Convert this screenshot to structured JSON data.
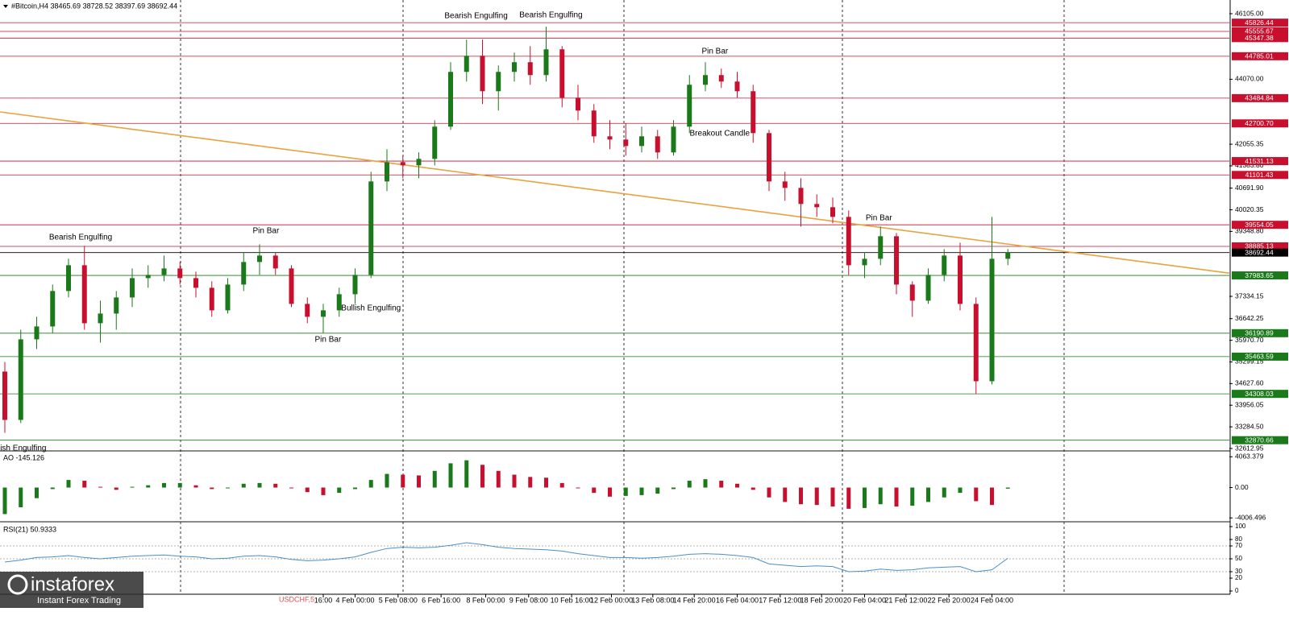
{
  "header": {
    "watermark": "USDCHF,5",
    "logo": "instaforex",
    "logo_sub": "Instant Forex Trading"
  },
  "chart_data": [
    {
      "type": "candlestick",
      "title": "#Bitcoin,H4  38465.69 38728.52 38397.69 38692.44",
      "up_color": "#1a7a1a",
      "down_color": "#c8102e",
      "ylim": [
        32588,
        46530
      ],
      "yticks": [
        {
          "value": 46105,
          "label": "46105.00"
        },
        {
          "value": 44070,
          "label": "44070.00"
        },
        {
          "value": 42055.35,
          "label": "42055.35"
        },
        {
          "value": 41383.8,
          "label": "41383.80"
        },
        {
          "value": 40691.9,
          "label": "40691.90"
        },
        {
          "value": 40020.35,
          "label": "40020.35"
        },
        {
          "value": 39348.8,
          "label": "39348.80"
        },
        {
          "value": 37334.15,
          "label": "37334.15"
        },
        {
          "value": 36642.25,
          "label": "36642.25"
        },
        {
          "value": 35970.7,
          "label": "35970.70"
        },
        {
          "value": 35299.15,
          "label": "35299.15"
        },
        {
          "value": 34627.6,
          "label": "34627.60"
        },
        {
          "value": 33956.05,
          "label": "33956.05"
        },
        {
          "value": 33284.5,
          "label": "33284.50"
        },
        {
          "value": 32612.95,
          "label": "32612.95"
        }
      ],
      "xticks": [
        {
          "value": 20,
          "label": "16:00"
        },
        {
          "value": 22,
          "label": "4 Feb 00:00"
        },
        {
          "value": 24.7,
          "label": "5 Feb 08:00"
        },
        {
          "value": 27.4,
          "label": "6 Feb 16:00"
        },
        {
          "value": 30.2,
          "label": "8 Feb 00:00"
        },
        {
          "value": 32.9,
          "label": "9 Feb 08:00"
        },
        {
          "value": 35.6,
          "label": "10 Feb 16:00"
        },
        {
          "value": 38.1,
          "label": "12 Feb 00:00"
        },
        {
          "value": 40.7,
          "label": "13 Feb 08:00"
        },
        {
          "value": 43.3,
          "label": "14 Feb 20:00"
        },
        {
          "value": 46,
          "label": "16 Feb 04:00"
        },
        {
          "value": 48.7,
          "label": "17 Feb 12:00"
        },
        {
          "value": 51.3,
          "label": "18 Feb 20:00"
        },
        {
          "value": 54,
          "label": "20 Feb 04:00"
        },
        {
          "value": 56.6,
          "label": "21 Feb 12:00"
        },
        {
          "value": 59.3,
          "label": "22 Feb 20:00"
        },
        {
          "value": 62,
          "label": "24 Feb 04:00"
        }
      ],
      "levels": [
        {
          "value": 45826.44,
          "label": "45826.44",
          "color": "#c8102e"
        },
        {
          "value": 45555.67,
          "label": "45555.67",
          "color": "#c8102e"
        },
        {
          "value": 45347.38,
          "label": "45347.38",
          "color": "#c8102e"
        },
        {
          "value": 44785.01,
          "label": "44785.01",
          "color": "#c8102e"
        },
        {
          "value": 43484.84,
          "label": "43484.84",
          "color": "#c8102e"
        },
        {
          "value": 42700.7,
          "label": "42700.70",
          "color": "#c8102e"
        },
        {
          "value": 41531.13,
          "label": "41531.13",
          "color": "#c8102e"
        },
        {
          "value": 41101.43,
          "label": "41101.43",
          "color": "#c8102e"
        },
        {
          "value": 39554.05,
          "label": "39554.05",
          "color": "#c8102e"
        },
        {
          "value": 38885.13,
          "label": "38885.13",
          "color": "#c8102e"
        },
        {
          "value": 38692.44,
          "label": "38692.44",
          "color": "#000000"
        },
        {
          "value": 37983.65,
          "label": "37983.65",
          "color": "#1a7a1a"
        },
        {
          "value": 36190.89,
          "label": "36190.89",
          "color": "#1a7a1a"
        },
        {
          "value": 35463.59,
          "label": "35463.59",
          "color": "#1a7a1a"
        },
        {
          "value": 34308.03,
          "label": "34308.03",
          "color": "#1a7a1a"
        },
        {
          "value": 32870.66,
          "label": "32870.66",
          "color": "#1a7a1a"
        }
      ],
      "trendline": {
        "x": [
          -0.3,
          76.9
        ],
        "y": [
          43057,
          38055
        ],
        "color": "#e8a33d"
      },
      "annotations": [
        {
          "text": "Bearish Engulfing",
          "x": 4.76,
          "y": 39159
        },
        {
          "text": "Pin Bar",
          "x": 16.4,
          "y": 39358
        },
        {
          "text": "Bullish Engulfing",
          "x": 23,
          "y": 36960
        },
        {
          "text": "Pin Bar",
          "x": 20.3,
          "y": 35985
        },
        {
          "text": "Bearish Engulfing",
          "x": 29.6,
          "y": 46030
        },
        {
          "text": "Bearish Engulfing",
          "x": 34.3,
          "y": 46055
        },
        {
          "text": "Pin Bar",
          "x": 44.6,
          "y": 44930
        },
        {
          "text": "Breakout Candle",
          "x": 44.9,
          "y": 42382
        },
        {
          "text": "Pin Bar",
          "x": 54.9,
          "y": 39758
        },
        {
          "text": "lish Engulfing",
          "x": 1.1,
          "y": 32612
        }
      ],
      "ohlc": [
        [
          35000,
          35300,
          33100,
          33500
        ],
        [
          33500,
          36300,
          33400,
          36000
        ],
        [
          36000,
          36700,
          35700,
          36400
        ],
        [
          36400,
          37700,
          36200,
          37500
        ],
        [
          37500,
          38500,
          37300,
          38300
        ],
        [
          38300,
          38900,
          36300,
          36500
        ],
        [
          36500,
          37200,
          35900,
          36800
        ],
        [
          36800,
          37500,
          36300,
          37300
        ],
        [
          37300,
          38200,
          37000,
          37900
        ],
        [
          37900,
          38300,
          37600,
          38000
        ],
        [
          38000,
          38600,
          37800,
          38200
        ],
        [
          38200,
          38400,
          37700,
          37900
        ],
        [
          37900,
          38100,
          37300,
          37600
        ],
        [
          37600,
          37800,
          36700,
          36900
        ],
        [
          36900,
          37900,
          36800,
          37700
        ],
        [
          37700,
          38700,
          37500,
          38400
        ],
        [
          38400,
          38950,
          38000,
          38600
        ],
        [
          38600,
          38700,
          38000,
          38200
        ],
        [
          38200,
          38300,
          37000,
          37100
        ],
        [
          37100,
          37300,
          36500,
          36700
        ],
        [
          36700,
          37100,
          36200,
          36900
        ],
        [
          36900,
          37600,
          36700,
          37400
        ],
        [
          37400,
          38200,
          37100,
          38000
        ],
        [
          38000,
          41200,
          37900,
          40900
        ],
        [
          40900,
          41900,
          40600,
          41500
        ],
        [
          41500,
          41700,
          41000,
          41400
        ],
        [
          41400,
          41800,
          41000,
          41600
        ],
        [
          41600,
          42800,
          41400,
          42600
        ],
        [
          42600,
          44600,
          42500,
          44300
        ],
        [
          44300,
          45300,
          44000,
          44800
        ],
        [
          44800,
          45300,
          43300,
          43700
        ],
        [
          43700,
          44500,
          43100,
          44300
        ],
        [
          44300,
          44900,
          44000,
          44600
        ],
        [
          44600,
          45100,
          43900,
          44200
        ],
        [
          44200,
          45700,
          44000,
          45000
        ],
        [
          45000,
          45100,
          43200,
          43500
        ],
        [
          43500,
          43900,
          42800,
          43100
        ],
        [
          43100,
          43300,
          42100,
          42300
        ],
        [
          42300,
          42800,
          41900,
          42200
        ],
        [
          42200,
          42700,
          41700,
          42000
        ],
        [
          42000,
          42600,
          41800,
          42300
        ],
        [
          42300,
          42500,
          41600,
          41800
        ],
        [
          41800,
          42800,
          41700,
          42600
        ],
        [
          42600,
          44200,
          42400,
          43900
        ],
        [
          43900,
          44600,
          43700,
          44200
        ],
        [
          44200,
          44400,
          43800,
          44000
        ],
        [
          44000,
          44300,
          43500,
          43700
        ],
        [
          43700,
          43900,
          42100,
          42400
        ],
        [
          42400,
          42500,
          40600,
          40900
        ],
        [
          40900,
          41200,
          40300,
          40700
        ],
        [
          40700,
          41000,
          39500,
          40200
        ],
        [
          40200,
          40500,
          39800,
          40100
        ],
        [
          40100,
          40400,
          39600,
          39800
        ],
        [
          39800,
          40000,
          38000,
          38300
        ],
        [
          38300,
          38700,
          37900,
          38500
        ],
        [
          38500,
          39500,
          38300,
          39200
        ],
        [
          39200,
          39300,
          37400,
          37700
        ],
        [
          37700,
          37800,
          36700,
          37200
        ],
        [
          37200,
          38200,
          37100,
          38000
        ],
        [
          38000,
          38800,
          37800,
          38600
        ],
        [
          38600,
          39000,
          36900,
          37100
        ],
        [
          37100,
          37300,
          34300,
          34700
        ],
        [
          34700,
          39800,
          34600,
          38500
        ],
        [
          38500,
          38800,
          38300,
          38692.44
        ]
      ]
    },
    {
      "type": "histogram",
      "title": "AO -145.126",
      "up_color": "#1a7a1a",
      "down_color": "#c8102e",
      "ylim": [
        -4302,
        4623
      ],
      "yticks": [
        4063.379,
        {
          "value": 0,
          "label": "0.00"
        },
        -4006.496
      ],
      "values": [
        -3500,
        -2600,
        -1400,
        -200,
        1000,
        900,
        100,
        -300,
        100,
        300,
        600,
        600,
        300,
        -200,
        -100,
        500,
        600,
        500,
        -100,
        -600,
        -1000,
        -700,
        -200,
        1000,
        1800,
        1700,
        1600,
        2200,
        3200,
        3600,
        3000,
        2200,
        1700,
        1400,
        1300,
        600,
        -100,
        -700,
        -1200,
        -1100,
        -1000,
        -800,
        -200,
        900,
        1100,
        900,
        500,
        -300,
        -1300,
        -1900,
        -2200,
        -2300,
        -2500,
        -2800,
        -2700,
        -2200,
        -2500,
        -2400,
        -1900,
        -1300,
        -700,
        -1800,
        -2300,
        -145.126
      ]
    },
    {
      "type": "line",
      "title": "RSI(21) 50.9333",
      "color": "#4a90c8",
      "ylim": [
        -3.75,
        106.25
      ],
      "yticks": [
        100,
        80,
        70,
        50,
        30,
        20,
        0
      ],
      "levels": [
        70,
        50,
        30
      ],
      "values": [
        45,
        48,
        52,
        53,
        55,
        52,
        50,
        52,
        54,
        55,
        56,
        54,
        53,
        50,
        51,
        54,
        55,
        53,
        49,
        47,
        48,
        50,
        53,
        60,
        66,
        68,
        67,
        68,
        71,
        75,
        72,
        68,
        66,
        65,
        64,
        62,
        58,
        55,
        52,
        52,
        51,
        52,
        54,
        57,
        58,
        57,
        55,
        52,
        42,
        40,
        38,
        39,
        38,
        30,
        31,
        34,
        32,
        33,
        36,
        37,
        38,
        30,
        33,
        50.9333
      ]
    }
  ]
}
